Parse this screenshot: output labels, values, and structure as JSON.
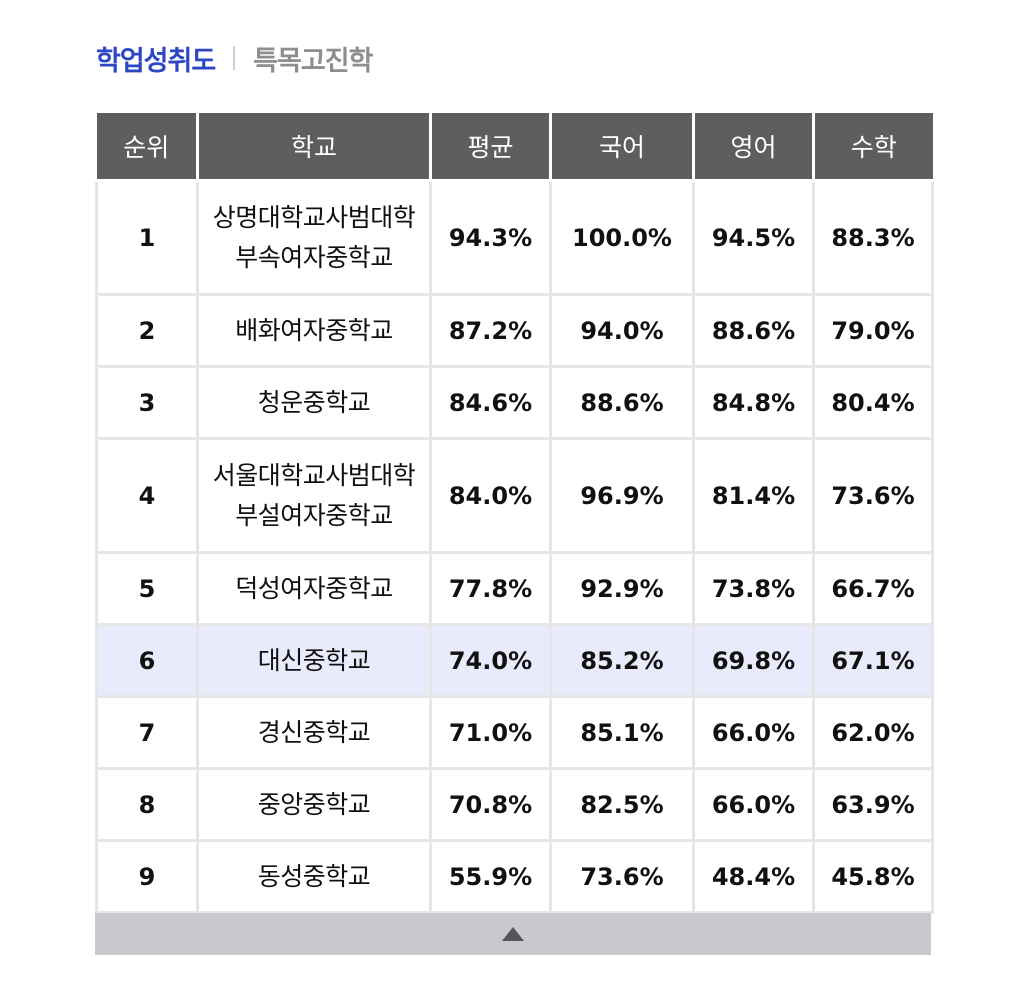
{
  "tabs": {
    "active": "학업성취도",
    "inactive": "특목고진학"
  },
  "table": {
    "headers": [
      "순위",
      "학교",
      "평균",
      "국어",
      "영어",
      "수학"
    ],
    "rows": [
      {
        "rank": "1",
        "school": [
          "상명대학교사범대학",
          "부속여자중학교"
        ],
        "avg": "94.3%",
        "korean": "100.0%",
        "english": "94.5%",
        "math": "88.3%"
      },
      {
        "rank": "2",
        "school": [
          "배화여자중학교"
        ],
        "avg": "87.2%",
        "korean": "94.0%",
        "english": "88.6%",
        "math": "79.0%"
      },
      {
        "rank": "3",
        "school": [
          "청운중학교"
        ],
        "avg": "84.6%",
        "korean": "88.6%",
        "english": "84.8%",
        "math": "80.4%"
      },
      {
        "rank": "4",
        "school": [
          "서울대학교사범대학",
          "부설여자중학교"
        ],
        "avg": "84.0%",
        "korean": "96.9%",
        "english": "81.4%",
        "math": "73.6%"
      },
      {
        "rank": "5",
        "school": [
          "덕성여자중학교"
        ],
        "avg": "77.8%",
        "korean": "92.9%",
        "english": "73.8%",
        "math": "66.7%"
      },
      {
        "rank": "6",
        "school": [
          "대신중학교"
        ],
        "avg": "74.0%",
        "korean": "85.2%",
        "english": "69.8%",
        "math": "67.1%",
        "highlight": true
      },
      {
        "rank": "7",
        "school": [
          "경신중학교"
        ],
        "avg": "71.0%",
        "korean": "85.1%",
        "english": "66.0%",
        "math": "62.0%"
      },
      {
        "rank": "8",
        "school": [
          "중앙중학교"
        ],
        "avg": "70.8%",
        "korean": "82.5%",
        "english": "66.0%",
        "math": "63.9%"
      },
      {
        "rank": "9",
        "school": [
          "동성중학교"
        ],
        "avg": "55.9%",
        "korean": "73.6%",
        "english": "48.4%",
        "math": "45.8%"
      }
    ],
    "highlight_color": "#e9eafb",
    "header_bg": "#5e5e5e"
  },
  "collapse": {
    "icon": "triangle-up-icon"
  },
  "colors": {
    "accent": "#2d46c4",
    "muted": "#8e8e8e"
  }
}
